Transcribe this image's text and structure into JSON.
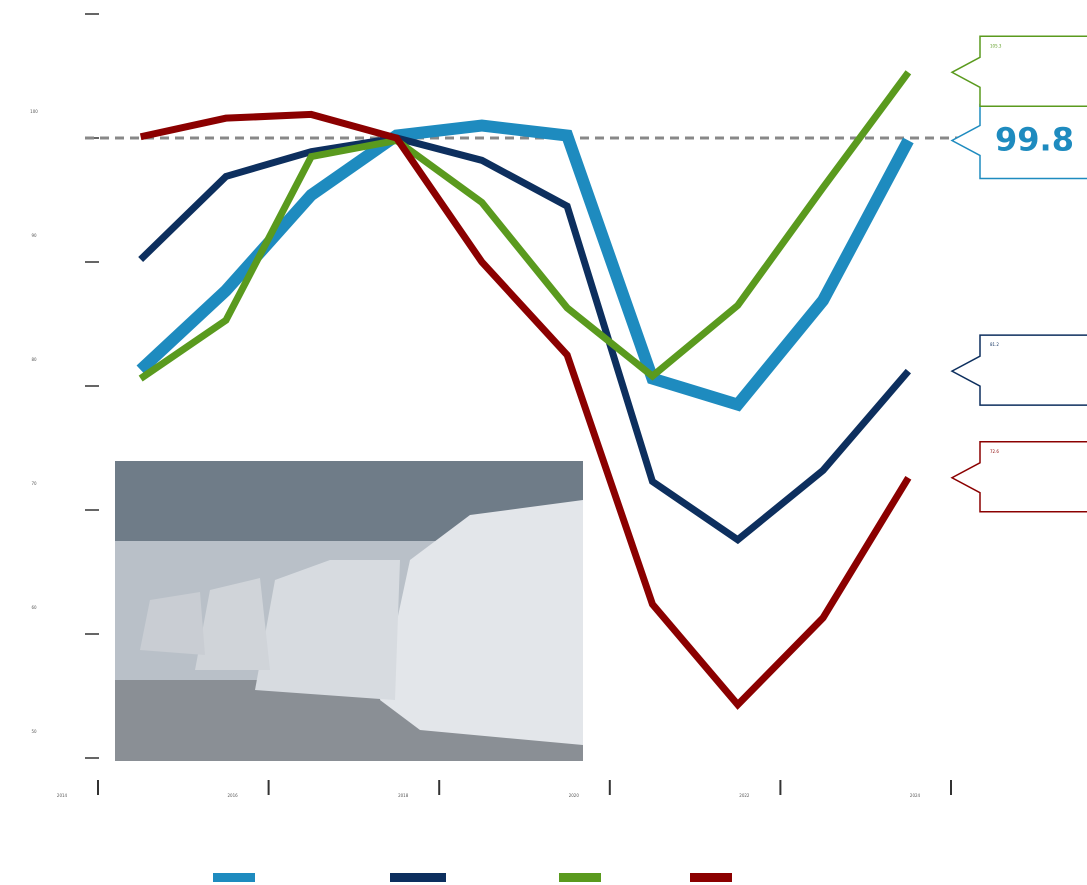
{
  "chart_data": {
    "type": "line",
    "x": [
      2014.5,
      2015.5,
      2016.5,
      2017.5,
      2018.5,
      2019.5,
      2020.5,
      2021.5,
      2022.5,
      2023.5
    ],
    "xlim": [
      2014,
      2024
    ],
    "xticks": [
      2014,
      2016,
      2018,
      2020,
      2022,
      2024
    ],
    "ylim": [
      50,
      110
    ],
    "yticks": [
      50,
      60,
      70,
      80,
      90,
      100,
      110
    ],
    "reference_line": 100,
    "series": [
      {
        "color": "#1e8bbf",
        "width": 12,
        "values": [
          81.3,
          87.7,
          95.4,
          100.2,
          101.0,
          100.2,
          80.6,
          78.5,
          86.9,
          99.8
        ]
      },
      {
        "color": "#0d2f5e",
        "width": 7,
        "values": [
          90.2,
          96.9,
          98.9,
          100.0,
          98.2,
          94.5,
          72.3,
          67.6,
          73.2,
          81.2
        ]
      },
      {
        "color": "#5a9a1e",
        "width": 7,
        "values": [
          80.6,
          85.3,
          98.5,
          99.8,
          94.8,
          86.3,
          80.8,
          86.5,
          96.0,
          105.3
        ]
      },
      {
        "color": "#8b0000",
        "width": 7,
        "values": [
          100.1,
          101.6,
          101.9,
          100.0,
          90.0,
          82.5,
          62.4,
          54.3,
          61.3,
          72.6
        ]
      }
    ],
    "highlight_series": 0
  }
}
